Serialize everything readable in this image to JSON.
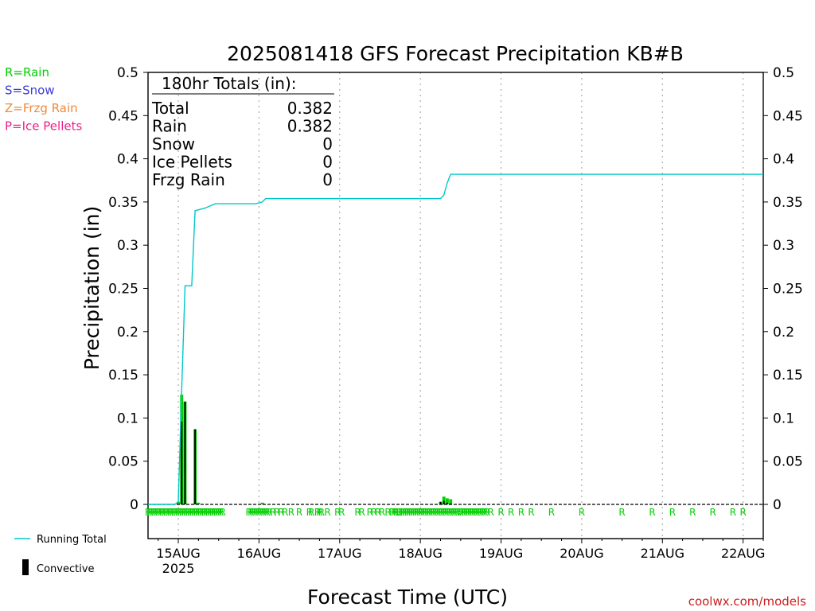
{
  "chart_data": {
    "type": "bar",
    "title": "2025081418 GFS Forecast Precipitation KB#B",
    "xlabel": "Forecast Time (UTC)",
    "ylabel": "Precipitation (in)",
    "ylim": [
      0,
      0.5
    ],
    "yticks": [
      "0",
      "0.05",
      "0.1",
      "0.15",
      "0.2",
      "0.25",
      "0.3",
      "0.35",
      "0.4",
      "0.45",
      "0.5"
    ],
    "xlim_hours": [
      -3,
      180
    ],
    "xticks": [
      {
        "hour": 6,
        "label": "15AUG",
        "sub": "2025"
      },
      {
        "hour": 30,
        "label": "16AUG",
        "sub": ""
      },
      {
        "hour": 54,
        "label": "17AUG",
        "sub": ""
      },
      {
        "hour": 78,
        "label": "18AUG",
        "sub": ""
      },
      {
        "hour": 102,
        "label": "19AUG",
        "sub": ""
      },
      {
        "hour": 126,
        "label": "20AUG",
        "sub": ""
      },
      {
        "hour": 150,
        "label": "21AUG",
        "sub": ""
      },
      {
        "hour": 174,
        "label": "22AUG",
        "sub": ""
      }
    ],
    "grid": "vertical-dotted",
    "series": [
      {
        "name": "Running Total",
        "kind": "line",
        "color": "#00c8c8",
        "points": [
          [
            -3,
            0
          ],
          [
            0,
            0
          ],
          [
            5,
            0
          ],
          [
            6,
            0.003
          ],
          [
            7,
            0.13
          ],
          [
            8,
            0.253
          ],
          [
            10,
            0.253
          ],
          [
            11,
            0.34
          ],
          [
            12,
            0.341
          ],
          [
            14,
            0.343
          ],
          [
            17,
            0.348
          ],
          [
            24,
            0.348
          ],
          [
            29,
            0.348
          ],
          [
            31,
            0.35
          ],
          [
            32,
            0.354
          ],
          [
            60,
            0.354
          ],
          [
            84,
            0.354
          ],
          [
            85,
            0.358
          ],
          [
            86,
            0.372
          ],
          [
            87,
            0.382
          ],
          [
            180,
            0.382
          ]
        ]
      },
      {
        "name": "Rain",
        "kind": "bar",
        "color": "#00d000",
        "bars": [
          [
            6,
            0.003
          ],
          [
            7,
            0.127
          ],
          [
            8,
            0.119
          ],
          [
            11,
            0.087
          ],
          [
            12,
            0.002
          ],
          [
            31,
            0.002
          ],
          [
            84,
            0.003
          ],
          [
            85,
            0.009
          ],
          [
            86,
            0.007
          ],
          [
            87,
            0.006
          ]
        ]
      },
      {
        "name": "Convective",
        "kind": "bar",
        "color": "#000000",
        "bars": [
          [
            7,
            0.096
          ],
          [
            8,
            0.119
          ],
          [
            11,
            0.087
          ],
          [
            84,
            0.003
          ],
          [
            85,
            0.004
          ],
          [
            86,
            0.002
          ],
          [
            87,
            0.001
          ]
        ]
      }
    ],
    "rain_hours": [
      -3,
      -2.4,
      -1.8,
      -1.2,
      -0.6,
      0,
      0.6,
      1.2,
      1.8,
      2.4,
      3,
      3.6,
      4.2,
      4.8,
      5.4,
      6,
      6.6,
      7.2,
      7.8,
      8.4,
      9,
      9.6,
      10.2,
      10.8,
      11.4,
      12,
      12.6,
      13.2,
      13.8,
      14.4,
      15,
      15.6,
      16.2,
      16.8,
      17.4,
      18,
      18.6,
      19.2,
      27,
      27.6,
      28.2,
      28.8,
      29.4,
      30,
      30.6,
      31.2,
      31.8,
      32.4,
      33,
      34.2,
      35.4,
      36.6,
      37.8,
      39.6,
      42,
      45,
      45.6,
      47.4,
      48,
      48.6,
      50.4,
      53.4,
      54.6,
      59.4,
      60.6,
      63,
      64.2,
      65.4,
      66.6,
      68.4,
      69.6,
      70.2,
      70.8,
      71.4,
      71.8,
      72.4,
      73,
      73.6,
      74.2,
      74.8,
      75.4,
      76,
      76.6,
      77.2,
      77.8,
      78.4,
      79,
      79.6,
      80.2,
      80.8,
      81.4,
      82,
      82.6,
      83.2,
      83.8,
      84.4,
      85,
      85.6,
      86.2,
      86.8,
      87.4,
      88,
      88.6,
      89.2,
      90,
      90.6,
      91.2,
      91.8,
      92.4,
      93,
      93.6,
      94.2,
      94.8,
      95.4,
      96,
      96.6,
      97.2,
      97.8,
      99,
      102,
      105,
      108,
      111,
      117,
      126,
      138,
      147,
      153,
      159,
      165,
      171,
      174
    ],
    "rain_marker_color": "#00d000"
  },
  "legend": {
    "left": [
      {
        "text": "R=Rain",
        "color": "#00d000"
      },
      {
        "text": "S=Snow",
        "color": "#3b3bdb"
      },
      {
        "text": "Z=Frzg Rain",
        "color": "#ee8a3a"
      },
      {
        "text": "P=Ice Pellets",
        "color": "#ee1f8a"
      }
    ],
    "running_total_label": "Running Total",
    "convective_label": "Convective"
  },
  "totals": {
    "header": "180hr Totals (in):",
    "rows": [
      {
        "label": "Total",
        "value": "0.382"
      },
      {
        "label": "Rain",
        "value": "0.382"
      },
      {
        "label": "Snow",
        "value": "0"
      },
      {
        "label": "Ice Pellets",
        "value": "0"
      },
      {
        "label": "Frzg Rain",
        "value": "0"
      }
    ]
  },
  "watermark": "coolwx.com/models"
}
